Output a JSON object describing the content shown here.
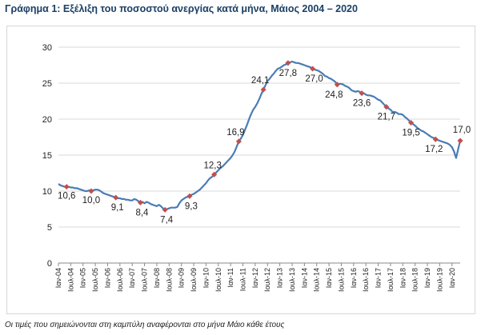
{
  "title": "Γράφημα 1: Εξέλιξη του ποσοστού ανεργίας κατά μήνα, Μάιος 2004 – 2020",
  "footnote": "Οι τιμές που σημειώνονται στη καμπύλη αναφέρονται στο μήνα Μάιο κάθε έτους",
  "colors": {
    "line": "#4a7cb5",
    "marker": "#c0504d",
    "title": "#1b3f66",
    "axis": "#888888"
  },
  "chart_data": {
    "type": "line",
    "title": "Γράφημα 1: Εξέλιξη του ποσοστού ανεργίας κατά μήνα, Μάιος 2004 – 2020",
    "xlabel": "",
    "ylabel": "",
    "ylim": [
      0,
      30
    ],
    "yticks": [
      0,
      5,
      10,
      15,
      20,
      25,
      30
    ],
    "xticks": [
      "Ιαν-04",
      "Ιουλ-04",
      "Ιαν-05",
      "Ιουλ-05",
      "Ιαν-06",
      "Ιουλ-06",
      "Ιαν-07",
      "Ιουλ-07",
      "Ιαν-08",
      "Ιουλ-08",
      "Ιαν-09",
      "Ιουλ-09",
      "Ιαν-10",
      "Ιουλ-10",
      "Ιαν-11",
      "Ιουλ-11",
      "Ιαν-12",
      "Ιουλ-12",
      "Ιαν-13",
      "Ιουλ-13",
      "Ιαν-14",
      "Ιουλ-14",
      "Ιαν-15",
      "Ιουλ-15",
      "Ιαν-16",
      "Ιουλ-16",
      "Ιαν-17",
      "Ιουλ-17",
      "Ιαν-18",
      "Ιουλ-18",
      "Ιαν-19",
      "Ιουλ-19",
      "Ιαν-20"
    ],
    "grid": true,
    "legend": "none",
    "series": [
      {
        "start": "2004-01",
        "values": [
          11.0,
          10.8,
          10.7,
          10.6,
          10.6,
          10.6,
          10.5,
          10.5,
          10.4,
          10.4,
          10.3,
          10.2,
          10.1,
          10.0,
          10.0,
          10.1,
          10.0,
          10.1,
          10.2,
          10.2,
          10.1,
          9.9,
          9.7,
          9.6,
          9.5,
          9.4,
          9.3,
          9.2,
          9.1,
          9.0,
          9.0,
          8.9,
          8.9,
          8.8,
          8.8,
          8.7,
          8.7,
          8.9,
          8.8,
          8.6,
          8.4,
          8.5,
          8.3,
          8.5,
          8.4,
          8.2,
          8.1,
          8.0,
          7.9,
          8.1,
          7.9,
          7.6,
          7.4,
          7.5,
          7.6,
          7.7,
          7.7,
          7.7,
          7.8,
          8.3,
          8.7,
          8.9,
          9.1,
          9.2,
          9.3,
          9.5,
          9.6,
          9.8,
          10.0,
          10.2,
          10.5,
          10.8,
          11.1,
          11.5,
          11.8,
          12.0,
          12.3,
          12.6,
          12.9,
          13.2,
          13.4,
          13.7,
          14.0,
          14.3,
          14.6,
          15.0,
          15.5,
          16.2,
          16.9,
          17.3,
          17.8,
          18.5,
          19.2,
          20.0,
          20.7,
          21.3,
          21.7,
          22.2,
          22.8,
          23.5,
          24.1,
          24.7,
          25.3,
          25.6,
          26.0,
          26.3,
          26.7,
          27.0,
          27.1,
          27.3,
          27.5,
          27.6,
          27.8,
          27.9,
          28.0,
          27.9,
          27.8,
          27.8,
          27.7,
          27.6,
          27.5,
          27.4,
          27.3,
          27.2,
          27.0,
          26.9,
          26.8,
          26.7,
          26.5,
          26.3,
          26.0,
          25.9,
          25.7,
          25.6,
          25.4,
          25.2,
          24.8,
          24.9,
          24.9,
          24.8,
          24.6,
          24.5,
          24.3,
          24.0,
          23.9,
          23.8,
          23.9,
          23.8,
          23.6,
          23.6,
          23.4,
          23.3,
          23.3,
          23.2,
          23.1,
          22.9,
          22.7,
          22.6,
          22.3,
          22.0,
          21.7,
          21.5,
          21.3,
          21.0,
          21.0,
          20.9,
          20.7,
          20.7,
          20.6,
          20.3,
          20.1,
          19.8,
          19.5,
          19.3,
          19.1,
          18.8,
          18.6,
          18.4,
          18.3,
          18.1,
          17.9,
          17.7,
          17.5,
          17.4,
          17.2,
          17.1,
          17.0,
          16.9,
          16.8,
          16.7,
          16.6,
          16.4,
          16.1,
          15.5,
          14.6,
          15.8,
          17.0
        ]
      }
    ],
    "annotations": [
      {
        "x": "2004-05",
        "label": "10,6"
      },
      {
        "x": "2005-05",
        "label": "10,0"
      },
      {
        "x": "2006-05",
        "label": "9,1"
      },
      {
        "x": "2007-05",
        "label": "8,4"
      },
      {
        "x": "2008-05",
        "label": "7,4"
      },
      {
        "x": "2009-05",
        "label": "9,3"
      },
      {
        "x": "2010-05",
        "label": "12,3"
      },
      {
        "x": "2011-05",
        "label": "16,9"
      },
      {
        "x": "2012-05",
        "label": "24,1"
      },
      {
        "x": "2013-05",
        "label": "27,8"
      },
      {
        "x": "2014-05",
        "label": "27,0"
      },
      {
        "x": "2015-05",
        "label": "24,8"
      },
      {
        "x": "2016-05",
        "label": "23,6"
      },
      {
        "x": "2017-05",
        "label": "21,7"
      },
      {
        "x": "2018-05",
        "label": "19,5"
      },
      {
        "x": "2019-05",
        "label": "17,2"
      },
      {
        "x": "2020-05",
        "label": "17,0"
      }
    ]
  }
}
